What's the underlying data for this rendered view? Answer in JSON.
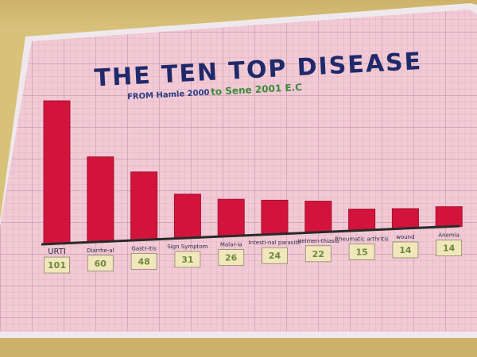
{
  "poster": {
    "title": "THE TEN TOP DISEASE",
    "subtitle_part1": "FROM Hamle 2000",
    "subtitle_part2": "to Sene 2001 E.C",
    "colors": {
      "bar": "#d2143c",
      "title": "#1f2a6b",
      "paper": "#f2c9d4",
      "value_box": "#f2e6bc"
    }
  },
  "chart_data": {
    "type": "bar",
    "title": "THE TEN TOP DISEASE",
    "categories": [
      "URTI",
      "Diarrhe-al",
      "Gastr-itis",
      "Sign Symptom",
      "Malar-ia",
      "Intesti-nal parasite",
      "Helmen-thiasis",
      "Rheumatic arthritis",
      "wound",
      "Anemia"
    ],
    "values": [
      101,
      60,
      48,
      31,
      26,
      24,
      22,
      15,
      14,
      14
    ],
    "value_labels": [
      "101",
      "60",
      "48",
      "31",
      "26",
      "24",
      "22",
      "15",
      "14",
      "14"
    ],
    "ylim": [
      0,
      101
    ],
    "grid": true,
    "legend": "none"
  }
}
